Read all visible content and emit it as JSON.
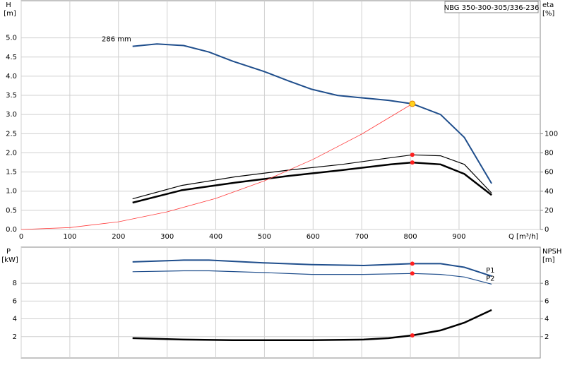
{
  "chart_data": [
    {
      "type": "line",
      "title": "NBG 350-300-305/336-236",
      "ylabel": "H",
      "yunit": "[m]",
      "y2label": "eta",
      "y2unit": "[%]",
      "xlabel": "Q [m³/h]",
      "xlim": [
        0,
        1067
      ],
      "xticks": [
        0,
        100,
        200,
        300,
        400,
        500,
        600,
        700,
        800,
        900
      ],
      "ylim": [
        0,
        5.97
      ],
      "yticks": [
        {
          "value": 0,
          "label": "0.0"
        },
        {
          "value": 0.5,
          "label": "0.5"
        },
        {
          "value": 1,
          "label": "1.0"
        },
        {
          "value": 1.5,
          "label": "1.5"
        },
        {
          "value": 2,
          "label": "2.0"
        },
        {
          "value": 2.5,
          "label": "2.5"
        },
        {
          "value": 3,
          "label": "3.0"
        },
        {
          "value": 3.5,
          "label": "3.5"
        },
        {
          "value": 4,
          "label": "4.0"
        },
        {
          "value": 4.5,
          "label": "4.5"
        },
        {
          "value": 5,
          "label": "5.0"
        }
      ],
      "y2lim": [
        0,
        239
      ],
      "y2ticks": [
        0,
        20,
        40,
        60,
        80,
        100
      ],
      "grid": true,
      "show_xtick_labels": true,
      "series": [
        {
          "name": "286 mm",
          "color": "#1f4e8c",
          "line_width": 2,
          "x": [
            229,
            279,
            334,
            386,
            435,
            498,
            549,
            597,
            650,
            704,
            755,
            804,
            862,
            911,
            967
          ],
          "values": [
            4.78,
            4.84,
            4.8,
            4.63,
            4.39,
            4.13,
            3.88,
            3.66,
            3.5,
            3.43,
            3.37,
            3.28,
            3.0,
            2.4,
            1.2
          ]
        },
        {
          "color": "#000000",
          "line_width": 1.2,
          "axis": "y2",
          "x": [
            229,
            330,
            440,
            550,
            660,
            760,
            804,
            862,
            911,
            967
          ],
          "values": [
            32,
            46,
            55,
            62,
            68,
            75,
            78,
            77,
            68,
            38
          ]
        },
        {
          "color": "#000000",
          "line_width": 2.5,
          "axis": "y2",
          "x": [
            229,
            330,
            440,
            550,
            660,
            760,
            804,
            862,
            911,
            967
          ],
          "values": [
            28,
            41,
            49,
            56,
            62,
            68,
            70,
            68,
            58,
            36
          ]
        },
        {
          "color": "#ff3b3b",
          "line_width": 0.8,
          "x": [
            0,
            100,
            200,
            300,
            400,
            500,
            600,
            700,
            804
          ],
          "values": [
            0,
            0.05,
            0.2,
            0.46,
            0.81,
            1.27,
            1.83,
            2.49,
            3.28
          ]
        }
      ],
      "duty_point": {
        "x": 804,
        "y": [
          3.28
        ],
        "y2": [
          78,
          70
        ],
        "color": "#ff2020",
        "main_color": "#ffd21f"
      }
    },
    {
      "type": "line",
      "ylabel": "P",
      "yunit": "[kW]",
      "y2label": "NPSH",
      "y2unit": "[m]",
      "xlim": [
        0,
        1067
      ],
      "xticks": [
        0,
        100,
        200,
        300,
        400,
        500,
        600,
        700,
        800,
        900
      ],
      "ylim": [
        -0.4,
        12.06
      ],
      "yticks": [
        2,
        4,
        6,
        8
      ],
      "y2lim": [
        -0.4,
        12.06
      ],
      "y2ticks": [
        2,
        4,
        6,
        8
      ],
      "grid": true,
      "show_xtick_labels": false,
      "series": [
        {
          "name": "P1",
          "color": "#1f4e8c",
          "line_width": 2,
          "x": [
            229,
            334,
            386,
            498,
            597,
            704,
            804,
            862,
            911,
            967
          ],
          "values": [
            10.4,
            10.6,
            10.6,
            10.3,
            10.1,
            10.0,
            10.2,
            10.2,
            9.8,
            8.8
          ]
        },
        {
          "name": "P2",
          "color": "#1f4e8c",
          "line_width": 1.2,
          "x": [
            229,
            334,
            386,
            498,
            597,
            704,
            804,
            862,
            911,
            967
          ],
          "values": [
            9.3,
            9.4,
            9.4,
            9.2,
            9.0,
            9.0,
            9.1,
            9.0,
            8.7,
            7.9
          ]
        },
        {
          "color": "#000000",
          "line_width": 2.5,
          "axis": "y2",
          "x": [
            229,
            334,
            435,
            597,
            704,
            755,
            804,
            862,
            911,
            967
          ],
          "values": [
            1.83,
            1.67,
            1.6,
            1.6,
            1.67,
            1.83,
            2.14,
            2.7,
            3.57,
            5.0
          ]
        }
      ],
      "duty_point": {
        "x": 804,
        "y": [
          10.2,
          9.1
        ],
        "y2": [
          2.14
        ],
        "color": "#ff2020"
      }
    }
  ]
}
